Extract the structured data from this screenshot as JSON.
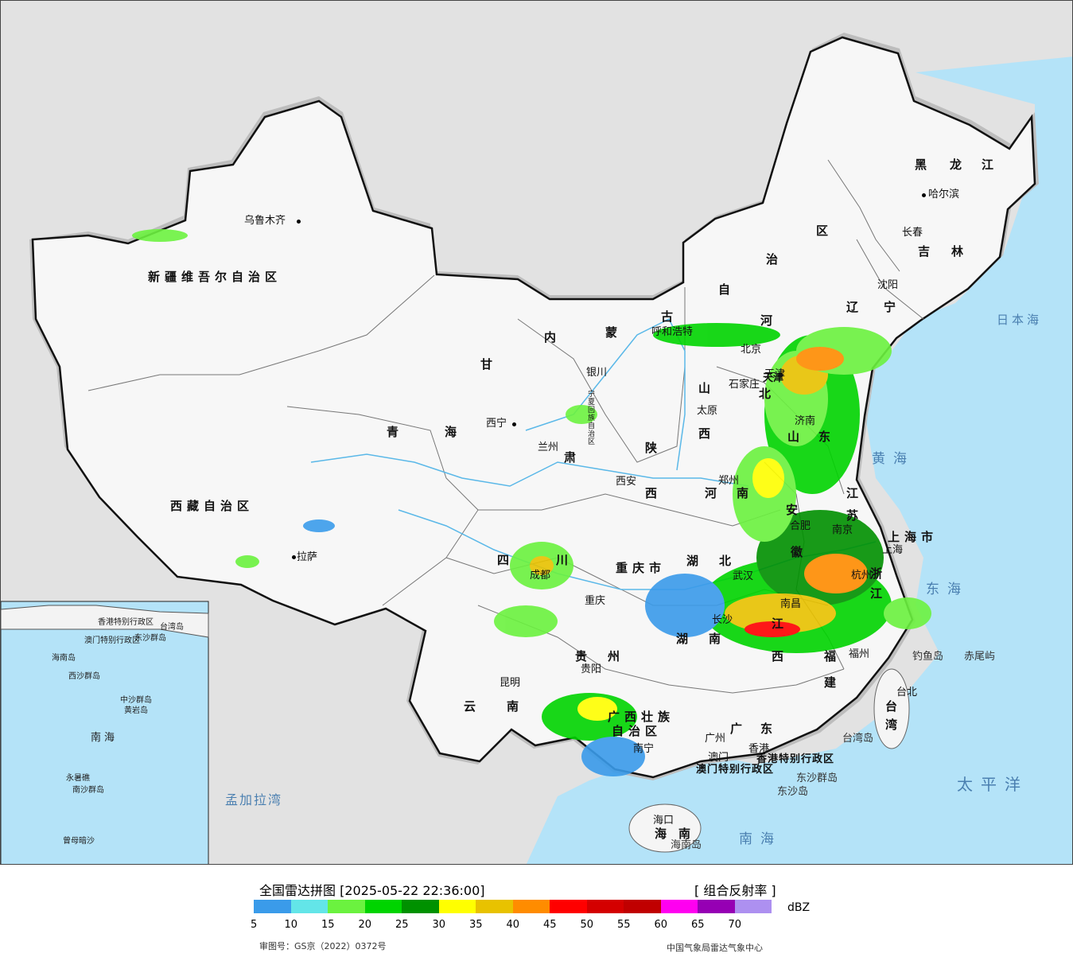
{
  "title": "全国雷达拼图 [2025-05-22 22:36:00]",
  "product": "[ 组合反射率 ]",
  "unit": "dBZ",
  "approval": "审图号：GS京（2022）0372号",
  "source": "中国气象局雷达气象中心",
  "legend": {
    "colors": [
      "#3a9bea",
      "#63e5e8",
      "#6bf23f",
      "#00d400",
      "#009100",
      "#ffff00",
      "#e8c200",
      "#ff8c00",
      "#ff0000",
      "#d40000",
      "#c00000",
      "#ff00f0",
      "#9600b4",
      "#ad90f0"
    ],
    "ticks": [
      "5",
      "10",
      "15",
      "20",
      "25",
      "30",
      "35",
      "40",
      "45",
      "50",
      "55",
      "60",
      "65",
      "70"
    ]
  },
  "map": {
    "provinces": [
      {
        "text": "新疆维吾尔自治区"
      },
      {
        "text": "西藏自治区"
      },
      {
        "text": "青"
      },
      {
        "text": "海"
      },
      {
        "text": "内"
      },
      {
        "text": "蒙"
      },
      {
        "text": "古"
      },
      {
        "text": "黑"
      },
      {
        "text": "龙"
      },
      {
        "text": "江"
      },
      {
        "text": "吉"
      },
      {
        "text": "林"
      },
      {
        "text": "辽"
      },
      {
        "text": "宁"
      },
      {
        "text": "河"
      },
      {
        "text": "北"
      },
      {
        "text": "山"
      },
      {
        "text": "西"
      },
      {
        "text": "陕"
      },
      {
        "text": "西"
      },
      {
        "text": "甘"
      },
      {
        "text": "肃"
      },
      {
        "text": "四"
      },
      {
        "text": "川"
      },
      {
        "text": "重庆市"
      },
      {
        "text": "湖"
      },
      {
        "text": "北"
      },
      {
        "text": "河"
      },
      {
        "text": "南"
      },
      {
        "text": "山"
      },
      {
        "text": "东"
      },
      {
        "text": "江"
      },
      {
        "text": "苏"
      },
      {
        "text": "上海市"
      },
      {
        "text": "浙"
      },
      {
        "text": "江"
      },
      {
        "text": "安"
      },
      {
        "text": "徽"
      },
      {
        "text": "江"
      },
      {
        "text": "西"
      },
      {
        "text": "湖"
      },
      {
        "text": "南"
      },
      {
        "text": "福"
      },
      {
        "text": "建"
      },
      {
        "text": "贵"
      },
      {
        "text": "州"
      },
      {
        "text": "云"
      },
      {
        "text": "南"
      },
      {
        "text": "广西壮族"
      },
      {
        "text": "自治区"
      },
      {
        "text": "广"
      },
      {
        "text": "东"
      },
      {
        "text": "台"
      },
      {
        "text": "湾"
      },
      {
        "text": "海"
      },
      {
        "text": "南"
      },
      {
        "text": "香港特别行政区"
      },
      {
        "text": "澳门特别行政区"
      },
      {
        "text": "宁夏回族自治区"
      },
      {
        "text": "天津"
      },
      {
        "text": "自"
      },
      {
        "text": "治"
      },
      {
        "text": "区"
      }
    ],
    "cities": [
      "乌鲁木齐",
      "哈尔滨",
      "长春",
      "沈阳",
      "呼和浩特",
      "北京",
      "天津",
      "石家庄",
      "太原",
      "济南",
      "银川",
      "西宁",
      "兰州",
      "西安",
      "郑州",
      "南京",
      "合肥",
      "上海",
      "杭州",
      "武汉",
      "长沙",
      "南昌",
      "福州",
      "台北",
      "成都",
      "重庆",
      "贵阳",
      "昆明",
      "南宁",
      "广州",
      "香港",
      "澳门",
      "海口",
      "拉萨"
    ],
    "seas": [
      "日本海",
      "黄海",
      "东海",
      "太平洋",
      "南海",
      "孟加拉湾"
    ],
    "islands": [
      "钓鱼岛",
      "赤尾屿",
      "台湾岛",
      "东沙群岛",
      "东沙岛",
      "海南岛"
    ],
    "inset": [
      "海南岛",
      "南海",
      "中沙群岛",
      "黄岩岛",
      "西沙群岛",
      "南沙群岛",
      "永暑礁",
      "曾母暗沙",
      "东沙群岛",
      "香港特别行政区",
      "澳门特别行政区",
      "台湾岛"
    ]
  }
}
